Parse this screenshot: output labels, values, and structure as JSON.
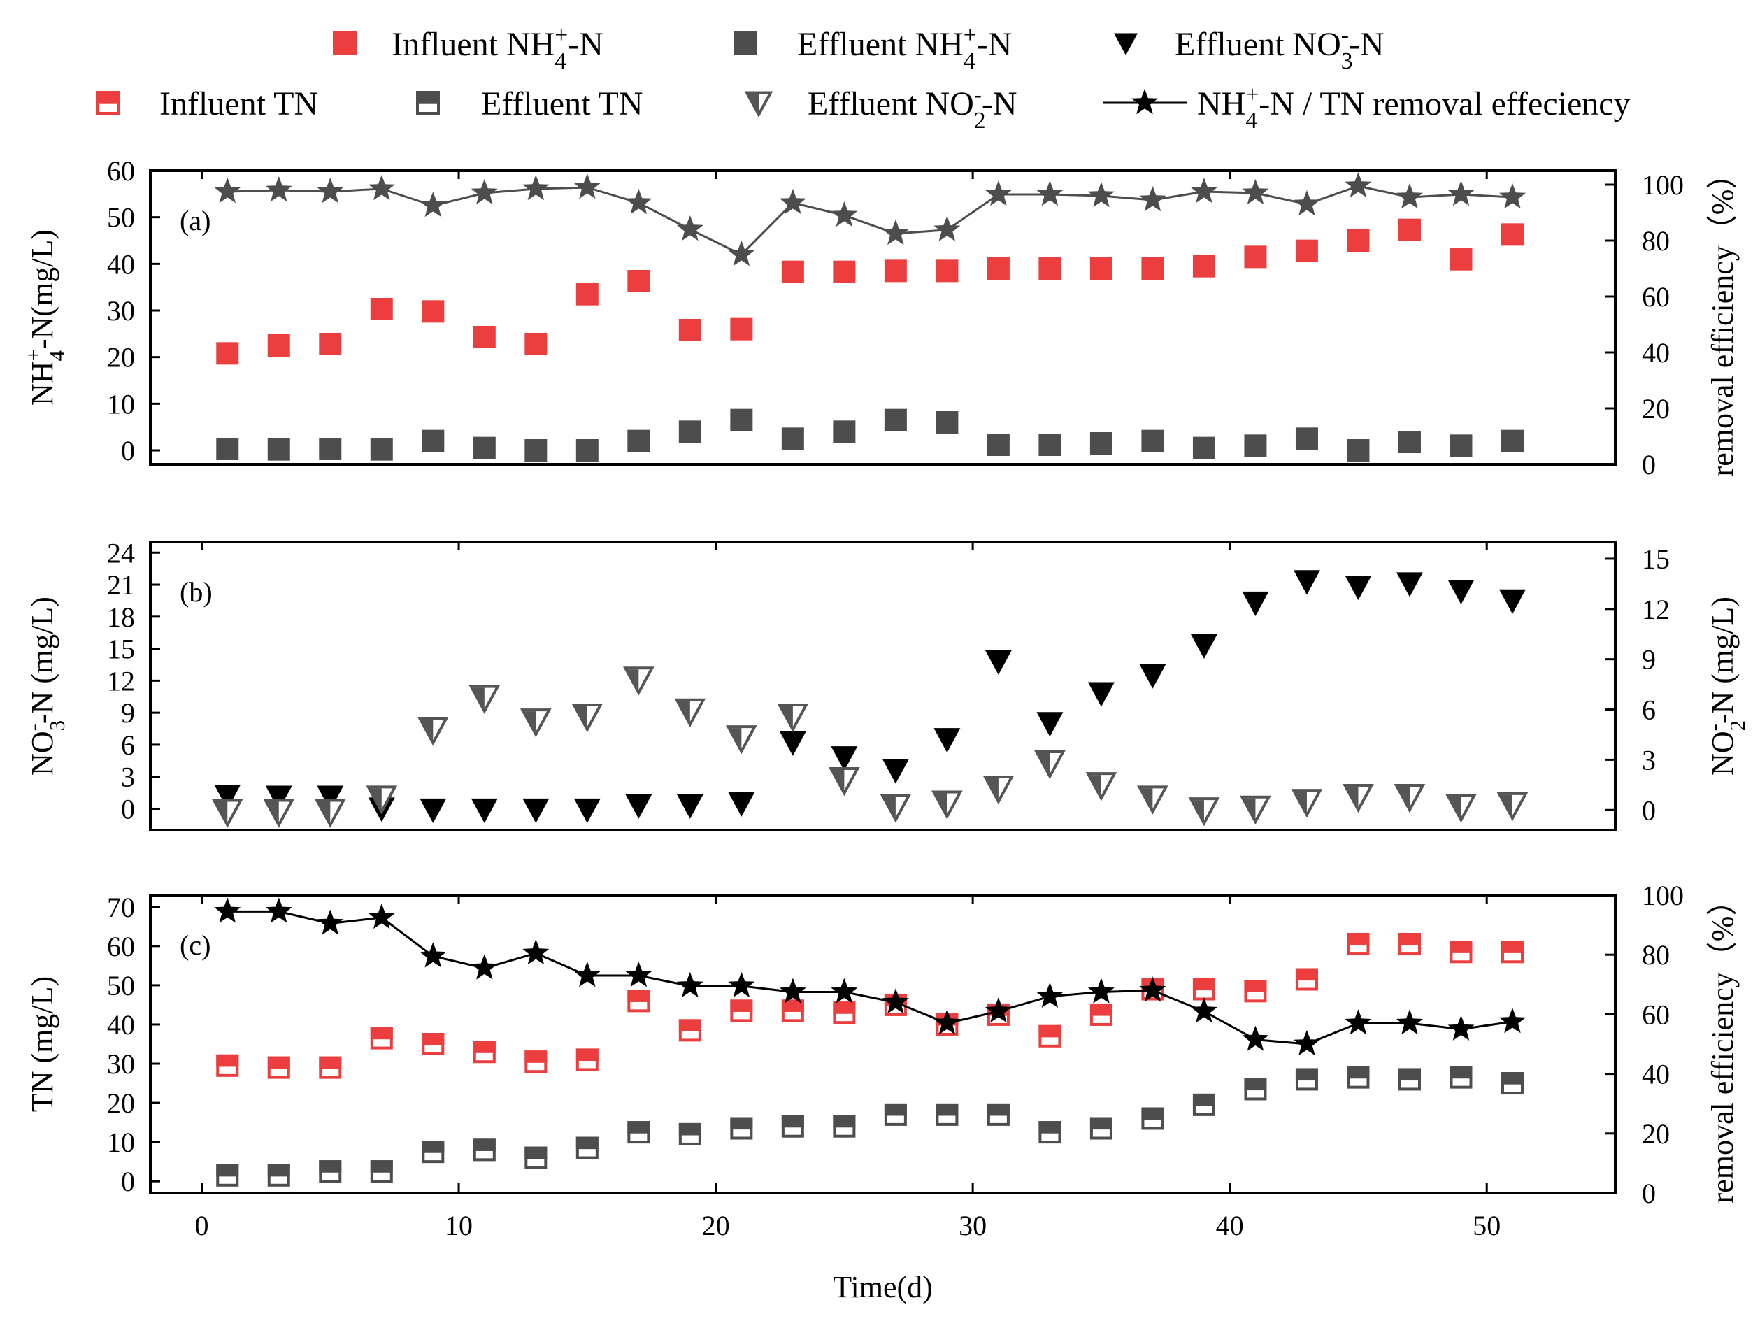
{
  "colors": {
    "influent": "#EC3E3E",
    "effluent": "#4D4D4D",
    "nitrate": "#000000",
    "nitrite": "#555555",
    "line_ammonium": "#4D4D4D",
    "line_tn": "#000000"
  },
  "legend": {
    "row1": [
      {
        "key": "influent_nh4",
        "marker": "square-filled",
        "text": "Influent NH",
        "sub": "4",
        "sup": "+",
        "tail": "-N"
      },
      {
        "key": "effluent_nh4",
        "marker": "square-filled-dark",
        "text": "Effluent NH",
        "sub": "4",
        "sup": "+",
        "tail": "-N"
      },
      {
        "key": "effluent_no3",
        "marker": "triangle-down-filled",
        "text": "Effluent NO",
        "sub": "3",
        "sup": "-",
        "tail": "-N"
      }
    ],
    "row2": [
      {
        "key": "influent_tn",
        "marker": "square-half-red",
        "text": "Influent TN"
      },
      {
        "key": "effluent_tn",
        "marker": "square-half-dark",
        "text": "Effluent TN"
      },
      {
        "key": "effluent_no2",
        "marker": "triangle-down-half",
        "text": "Effluent NO",
        "sub": "2",
        "sup": "-",
        "tail": "-N"
      },
      {
        "key": "removal",
        "marker": "line-star",
        "text": "NH",
        "sub": "4",
        "sup": "+",
        "tail": "-N / TN removal effeciency"
      }
    ]
  },
  "x_axis": {
    "label": "Time(d)",
    "range": [
      -2,
      55
    ],
    "ticks": [
      0,
      10,
      20,
      30,
      40,
      50
    ]
  },
  "chart_data": [
    {
      "panel": "(a)",
      "type": "scatter",
      "x": [
        1,
        3,
        5,
        7,
        9,
        11,
        13,
        15,
        17,
        19,
        21,
        23,
        25,
        27,
        29,
        31,
        33,
        35,
        37,
        39,
        41,
        43,
        45,
        47,
        49,
        51
      ],
      "ylabel": {
        "text": "NH",
        "sub": "4",
        "sup": "+",
        "tail": "-N(mg/L)"
      },
      "ylim": [
        -3,
        60
      ],
      "yticks": [
        0,
        10,
        20,
        30,
        40,
        50,
        60
      ],
      "y2label": "removal efficiency（%）",
      "y2lim": [
        0,
        105
      ],
      "y2ticks": [
        0,
        20,
        40,
        60,
        80,
        100
      ],
      "series": [
        {
          "name": "Influent NH4+-N",
          "axis": "left",
          "marker": "square-filled",
          "values": [
            20.8,
            22.5,
            22.8,
            30.3,
            29.8,
            24.3,
            22.8,
            33.5,
            36.3,
            25.8,
            26.0,
            38.3,
            38.3,
            38.5,
            38.5,
            39.0,
            39.0,
            39.0,
            39.0,
            39.5,
            41.5,
            42.8,
            45.0,
            47.3,
            41.0,
            46.3
          ]
        },
        {
          "name": "Effluent NH4+-N",
          "axis": "left",
          "marker": "square-filled-dark",
          "values": [
            0.3,
            0.2,
            0.3,
            0.2,
            2.0,
            0.5,
            0.0,
            0.0,
            2.0,
            4.0,
            6.5,
            2.5,
            4.0,
            6.5,
            6.0,
            1.2,
            1.2,
            1.5,
            2.0,
            0.5,
            1.0,
            2.5,
            0.0,
            1.8,
            1.0,
            2.0
          ]
        },
        {
          "name": "NH4+-N removal efficiency",
          "axis": "right",
          "marker": "line-star",
          "values": [
            97.5,
            98,
            97.5,
            98.5,
            92.5,
            97,
            98.5,
            99,
            93.5,
            84,
            75,
            93.5,
            89,
            82.5,
            83.8,
            96.5,
            96.5,
            96,
            94.5,
            97.5,
            97,
            93,
            99.5,
            95.5,
            96.5,
            95.5
          ]
        }
      ]
    },
    {
      "panel": "(b)",
      "type": "scatter",
      "x": [
        1,
        3,
        5,
        7,
        9,
        11,
        13,
        15,
        17,
        19,
        21,
        23,
        25,
        27,
        29,
        31,
        33,
        35,
        37,
        39,
        41,
        43,
        45,
        47,
        49,
        51
      ],
      "ylabel": {
        "text": "NO",
        "sub": "3",
        "sup": "-",
        "tail": "-N (mg/L)"
      },
      "ylim": [
        -2,
        25
      ],
      "yticks": [
        0,
        3,
        6,
        9,
        12,
        15,
        18,
        21,
        24
      ],
      "y2label": {
        "text": "NO",
        "sub": "2",
        "sup": "-",
        "tail": "-N (mg/L)"
      },
      "y2lim": [
        -1.2,
        16
      ],
      "y2ticks": [
        0,
        3,
        6,
        9,
        12,
        15
      ],
      "series": [
        {
          "name": "Effluent NO3--N",
          "axis": "left",
          "marker": "triangle-down-filled",
          "values": [
            1.2,
            1.1,
            1.1,
            0.0,
            -0.1,
            -0.1,
            -0.1,
            -0.1,
            0.3,
            0.3,
            0.5,
            6.2,
            4.8,
            3.6,
            6.5,
            13.8,
            8.0,
            10.8,
            12.5,
            15.3,
            19.3,
            21.3,
            20.8,
            21.1,
            20.4,
            19.5
          ]
        },
        {
          "name": "Effluent NO2--N",
          "axis": "right",
          "marker": "triangle-down-half",
          "values": [
            -0.1,
            -0.1,
            -0.1,
            0.7,
            4.8,
            6.7,
            5.3,
            5.6,
            7.8,
            5.9,
            4.3,
            5.6,
            1.8,
            0.2,
            0.4,
            1.3,
            2.8,
            1.5,
            0.7,
            0.0,
            0.1,
            0.5,
            0.8,
            0.8,
            0.2,
            0.3
          ]
        }
      ]
    },
    {
      "panel": "(c)",
      "type": "scatter",
      "x": [
        1,
        3,
        5,
        7,
        9,
        11,
        13,
        15,
        17,
        19,
        21,
        23,
        25,
        27,
        29,
        31,
        33,
        35,
        37,
        39,
        41,
        43,
        45,
        47,
        49,
        51
      ],
      "ylabel": "TN (mg/L)",
      "ylim": [
        -3,
        73
      ],
      "yticks": [
        0,
        10,
        20,
        30,
        40,
        50,
        60,
        70
      ],
      "y2label": "removal efficiency（%）",
      "y2lim": [
        0,
        100
      ],
      "y2ticks": [
        0,
        20,
        40,
        60,
        80,
        100
      ],
      "series": [
        {
          "name": "Influent TN",
          "axis": "left",
          "marker": "square-half-red",
          "values": [
            29.5,
            29.0,
            29.0,
            36.5,
            35.0,
            33.0,
            30.5,
            31.0,
            46.0,
            38.5,
            43.5,
            43.5,
            43.0,
            45.0,
            40.0,
            42.5,
            37.0,
            42.5,
            49.0,
            49.0,
            48.5,
            51.5,
            60.5,
            60.5,
            58.5,
            58.5
          ]
        },
        {
          "name": "Effluent TN",
          "axis": "left",
          "marker": "square-half-dark",
          "values": [
            1.5,
            1.5,
            2.5,
            2.5,
            7.5,
            8.0,
            6.0,
            8.5,
            12.5,
            12.0,
            13.5,
            14.0,
            14.0,
            17.0,
            17.0,
            17.0,
            12.5,
            13.5,
            16.0,
            19.5,
            23.5,
            26.0,
            26.5,
            26.0,
            26.5,
            25.0
          ]
        },
        {
          "name": "TN removal efficiency",
          "axis": "right",
          "marker": "line-star",
          "values": [
            94.5,
            94.5,
            90.5,
            92.5,
            79.5,
            75.5,
            80.5,
            73,
            73,
            69.5,
            69.5,
            67.5,
            67.5,
            64,
            57,
            61,
            66,
            67.5,
            68,
            61,
            51.5,
            50,
            57,
            57,
            55,
            57.5
          ]
        }
      ]
    }
  ]
}
